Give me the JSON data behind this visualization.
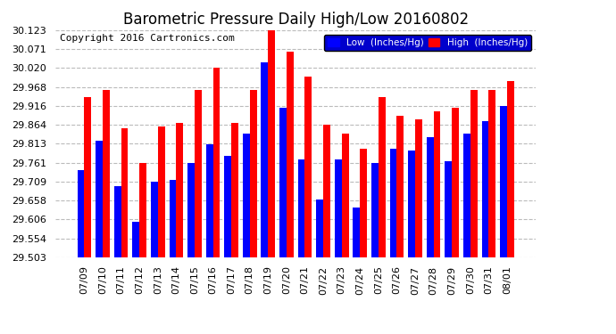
{
  "title": "Barometric Pressure Daily High/Low 20160802",
  "copyright": "Copyright 2016 Cartronics.com",
  "legend_low": "Low  (Inches/Hg)",
  "legend_high": "High  (Inches/Hg)",
  "categories": [
    "07/09",
    "07/10",
    "07/11",
    "07/12",
    "07/13",
    "07/14",
    "07/15",
    "07/16",
    "07/17",
    "07/18",
    "07/19",
    "07/20",
    "07/21",
    "07/22",
    "07/23",
    "07/24",
    "07/25",
    "07/26",
    "07/27",
    "07/28",
    "07/29",
    "07/30",
    "07/31",
    "08/01"
  ],
  "low_values": [
    29.74,
    29.82,
    29.696,
    29.6,
    29.71,
    29.713,
    29.76,
    29.81,
    29.78,
    29.84,
    30.035,
    29.91,
    29.77,
    29.66,
    29.77,
    29.638,
    29.76,
    29.8,
    29.795,
    29.83,
    29.765,
    29.84,
    29.875,
    29.916
  ],
  "high_values": [
    29.94,
    29.96,
    29.855,
    29.76,
    29.86,
    29.87,
    29.96,
    30.02,
    29.87,
    29.96,
    30.123,
    30.065,
    29.995,
    29.865,
    29.84,
    29.8,
    29.94,
    29.89,
    29.88,
    29.9,
    29.91,
    29.96,
    29.96,
    29.985
  ],
  "ymin": 29.503,
  "ymax": 30.123,
  "yticks": [
    29.503,
    29.554,
    29.606,
    29.658,
    29.709,
    29.761,
    29.813,
    29.864,
    29.916,
    29.968,
    30.02,
    30.071,
    30.123
  ],
  "low_color": "#0000ff",
  "high_color": "#ff0000",
  "background_color": "#ffffff",
  "plot_bg_color": "#ffffff",
  "grid_color": "#bbbbbb",
  "title_color": "#000000",
  "title_fontsize": 12,
  "tick_fontsize": 8,
  "copyright_fontsize": 8,
  "bar_width": 0.38
}
